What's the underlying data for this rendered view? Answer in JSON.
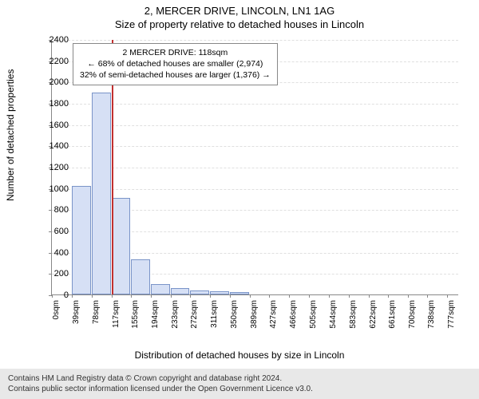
{
  "title_line1": "2, MERCER DRIVE, LINCOLN, LN1 1AG",
  "title_line2": "Size of property relative to detached houses in Lincoln",
  "y_axis_label": "Number of detached properties",
  "x_axis_label": "Distribution of detached houses by size in Lincoln",
  "footer_line1": "Contains HM Land Registry data © Crown copyright and database right 2024.",
  "footer_line2": "Contains public sector information licensed under the Open Government Licence v3.0.",
  "chart": {
    "type": "histogram",
    "ymax": 2400,
    "ytick_step": 200,
    "yticks": [
      0,
      200,
      400,
      600,
      800,
      1000,
      1200,
      1400,
      1600,
      1800,
      2000,
      2200,
      2400
    ],
    "xmax": 800,
    "xticks": [
      0,
      39,
      78,
      117,
      155,
      194,
      233,
      272,
      311,
      350,
      389,
      427,
      466,
      505,
      544,
      583,
      622,
      661,
      700,
      738,
      777
    ],
    "xtick_suffix": "sqm",
    "bar_fill": "#d6e0f5",
    "bar_stroke": "#7a94c8",
    "grid_color": "#e0e0e0",
    "axis_color": "#888888",
    "bars": [
      {
        "x0": 39,
        "x1": 78,
        "y": 1020
      },
      {
        "x0": 78,
        "x1": 117,
        "y": 1900
      },
      {
        "x0": 117,
        "x1": 155,
        "y": 910
      },
      {
        "x0": 155,
        "x1": 194,
        "y": 330
      },
      {
        "x0": 194,
        "x1": 233,
        "y": 100
      },
      {
        "x0": 233,
        "x1": 272,
        "y": 60
      },
      {
        "x0": 272,
        "x1": 311,
        "y": 40
      },
      {
        "x0": 311,
        "x1": 350,
        "y": 30
      },
      {
        "x0": 350,
        "x1": 389,
        "y": 20
      }
    ],
    "marker_x": 118,
    "marker_color": "#c23030"
  },
  "annotation": {
    "line1": "2 MERCER DRIVE: 118sqm",
    "line2": "← 68% of detached houses are smaller (2,974)",
    "line3": "32% of semi-detached houses are larger (1,376) →",
    "border_color": "#888888",
    "background": "#ffffff",
    "fontsize": 10.5
  }
}
